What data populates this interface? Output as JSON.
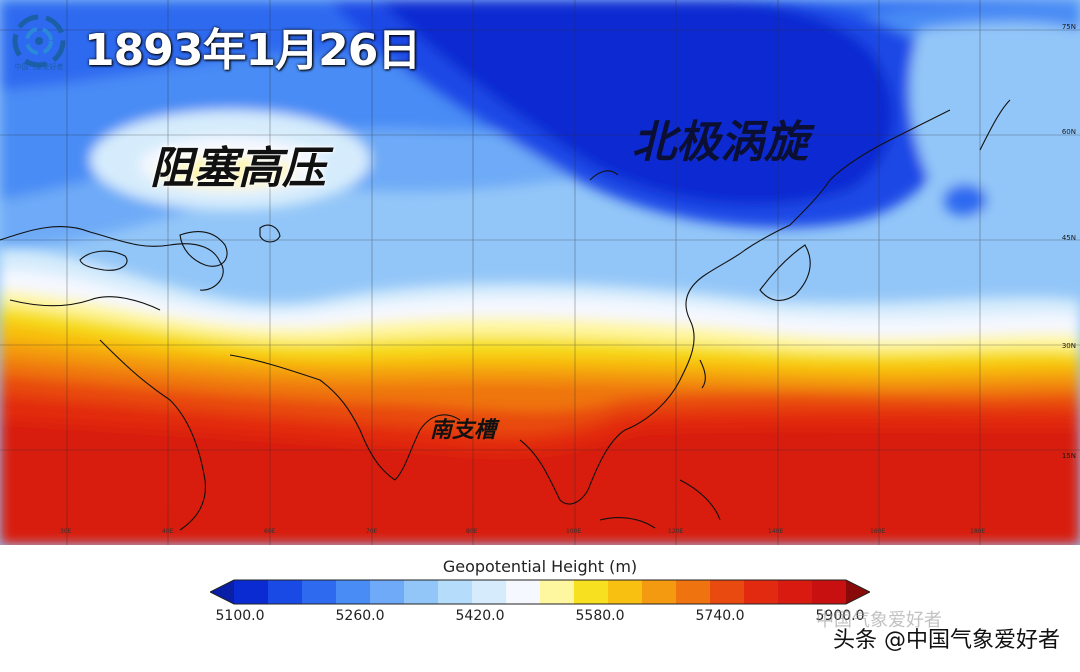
{
  "title": "1893年1月26日",
  "logo": {
    "name": "cma-logo",
    "text": "中国气象爱好者"
  },
  "annotations": {
    "blocking_high": "阻塞高压",
    "polar_vortex": "北极涡旋",
    "south_trough": "南支槽"
  },
  "lat_labels": [
    "75N",
    "60N",
    "45N",
    "30N",
    "15N"
  ],
  "lon_labels": [
    "30E",
    "40E",
    "60E",
    "70E",
    "80E",
    "100E",
    "120E",
    "140E",
    "160E",
    "180E"
  ],
  "colorbar": {
    "title": "Geopotential Height (m)",
    "ticks": [
      "5100.0",
      "5260.0",
      "5420.0",
      "5580.0",
      "5740.0",
      "5900.0"
    ],
    "colors": [
      "#0a2ad2",
      "#1a4ae6",
      "#2e6af0",
      "#4a8cf5",
      "#6eaaf7",
      "#93c6f8",
      "#b5dcfa",
      "#d6ecfc",
      "#f5f8ff",
      "#fff6a0",
      "#f6e020",
      "#f8c010",
      "#f39a10",
      "#ef7410",
      "#e84a10",
      "#e22a10",
      "#d81a10",
      "#c81010"
    ]
  },
  "watermark": "中国气象爱好者",
  "source": "头条 @中国气象爱好者"
}
